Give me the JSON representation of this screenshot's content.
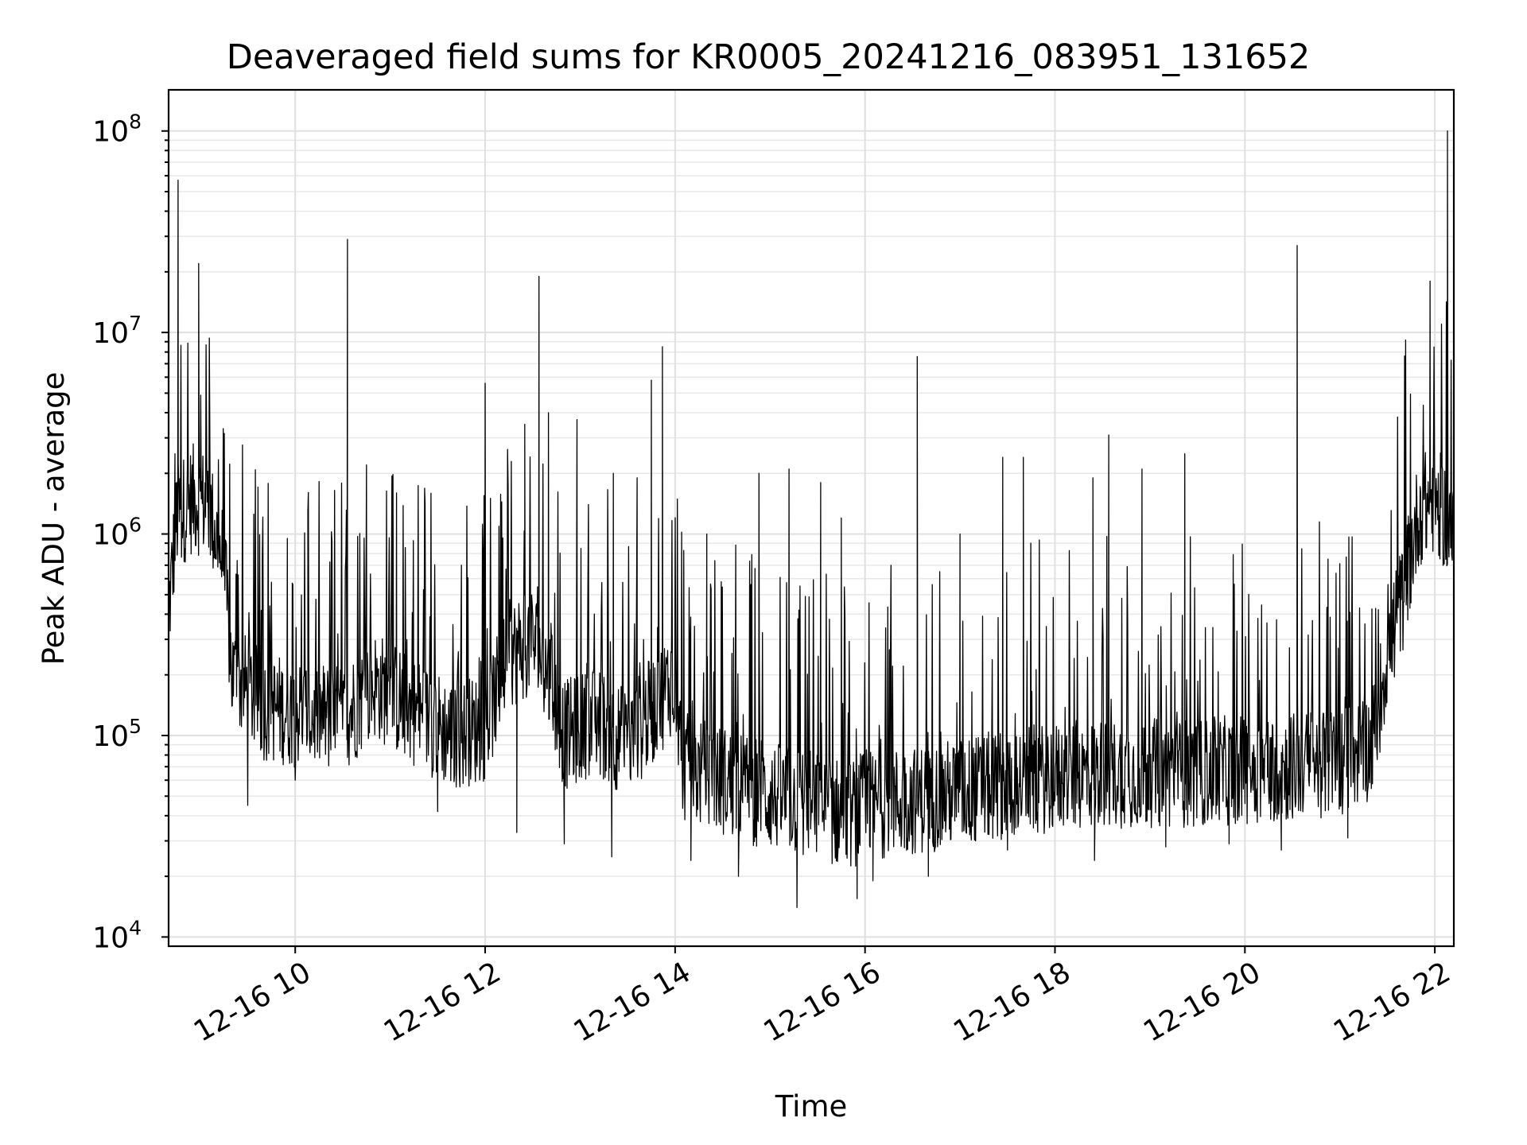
{
  "chart_data": {
    "type": "line",
    "title": "Deaveraged field sums for KR0005_20241216_083951_131652",
    "xlabel": "Time",
    "ylabel": "Peak ADU - average",
    "yscale": "log",
    "ylim": [
      9000,
      160000000
    ],
    "xlim": [
      "2024-12-16 08:40",
      "2024-12-16 22:12"
    ],
    "grid": true,
    "x_ticks": [
      {
        "time": "2024-12-16 10:00",
        "label": "12-16 10"
      },
      {
        "time": "2024-12-16 12:00",
        "label": "12-16 12"
      },
      {
        "time": "2024-12-16 14:00",
        "label": "12-16 14"
      },
      {
        "time": "2024-12-16 16:00",
        "label": "12-16 16"
      },
      {
        "time": "2024-12-16 18:00",
        "label": "12-16 18"
      },
      {
        "time": "2024-12-16 20:00",
        "label": "12-16 20"
      },
      {
        "time": "2024-12-16 22:00",
        "label": "12-16 22"
      }
    ],
    "y_ticks": [
      {
        "value": 10000,
        "base": "10",
        "exp": "4"
      },
      {
        "value": 100000,
        "base": "10",
        "exp": "5"
      },
      {
        "value": 1000000,
        "base": "10",
        "exp": "6"
      },
      {
        "value": 10000000,
        "base": "10",
        "exp": "7"
      },
      {
        "value": 100000000,
        "base": "10",
        "exp": "8"
      }
    ],
    "series": [
      {
        "color": "#000000",
        "baseline": [
          [
            "2024-12-16 08:40",
            400000
          ],
          [
            "2024-12-16 08:45",
            1200000
          ],
          [
            "2024-12-16 08:55",
            1500000
          ],
          [
            "2024-12-16 09:05",
            1400000
          ],
          [
            "2024-12-16 09:15",
            700000
          ],
          [
            "2024-12-16 09:20",
            200000
          ],
          [
            "2024-12-16 09:40",
            140000
          ],
          [
            "2024-12-16 10:00",
            130000
          ],
          [
            "2024-12-16 10:30",
            120000
          ],
          [
            "2024-12-16 10:50",
            180000
          ],
          [
            "2024-12-16 11:10",
            140000
          ],
          [
            "2024-12-16 11:40",
            100000
          ],
          [
            "2024-12-16 12:00",
            110000
          ],
          [
            "2024-12-16 12:15",
            250000
          ],
          [
            "2024-12-16 12:30",
            300000
          ],
          [
            "2024-12-16 12:40",
            200000
          ],
          [
            "2024-12-16 12:50",
            100000
          ],
          [
            "2024-12-16 13:10",
            120000
          ],
          [
            "2024-12-16 13:30",
            90000
          ],
          [
            "2024-12-16 13:50",
            150000
          ],
          [
            "2024-12-16 14:00",
            200000
          ],
          [
            "2024-12-16 14:05",
            70000
          ],
          [
            "2024-12-16 14:30",
            60000
          ],
          [
            "2024-12-16 15:00",
            50000
          ],
          [
            "2024-12-16 15:30",
            45000
          ],
          [
            "2024-12-16 15:50",
            40000
          ],
          [
            "2024-12-16 16:00",
            45000
          ],
          [
            "2024-12-16 16:30",
            48000
          ],
          [
            "2024-12-16 17:00",
            52000
          ],
          [
            "2024-12-16 17:30",
            58000
          ],
          [
            "2024-12-16 18:00",
            62000
          ],
          [
            "2024-12-16 18:30",
            65000
          ],
          [
            "2024-12-16 19:00",
            65000
          ],
          [
            "2024-12-16 19:30",
            65000
          ],
          [
            "2024-12-16 20:00",
            68000
          ],
          [
            "2024-12-16 20:30",
            70000
          ],
          [
            "2024-12-16 21:00",
            75000
          ],
          [
            "2024-12-16 21:20",
            90000
          ],
          [
            "2024-12-16 21:30",
            250000
          ],
          [
            "2024-12-16 21:40",
            500000
          ],
          [
            "2024-12-16 21:50",
            1300000
          ],
          [
            "2024-12-16 22:00",
            1500000
          ],
          [
            "2024-12-16 22:10",
            1100000
          ],
          [
            "2024-12-16 22:12",
            900000
          ]
        ],
        "spikes": [
          [
            "2024-12-16 08:44",
            2500000
          ],
          [
            "2024-12-16 08:46",
            57000000
          ],
          [
            "2024-12-16 08:59",
            22000000
          ],
          [
            "2024-12-16 09:04",
            3000000
          ],
          [
            "2024-12-16 09:55",
            950000
          ],
          [
            "2024-12-16 10:08",
            1300000
          ],
          [
            "2024-12-16 10:33",
            29000000
          ],
          [
            "2024-12-16 10:45",
            2200000
          ],
          [
            "2024-12-16 11:04",
            1600000
          ],
          [
            "2024-12-16 11:45",
            700000
          ],
          [
            "2024-12-16 12:00",
            5600000
          ],
          [
            "2024-12-16 12:25",
            3500000
          ],
          [
            "2024-12-16 12:34",
            19000000
          ],
          [
            "2024-12-16 12:40",
            4000000
          ],
          [
            "2024-12-16 12:58",
            3700000
          ],
          [
            "2024-12-16 13:21",
            2000000
          ],
          [
            "2024-12-16 13:36",
            1900000
          ],
          [
            "2024-12-16 13:45",
            5800000
          ],
          [
            "2024-12-16 13:52",
            8500000
          ],
          [
            "2024-12-16 14:20",
            1000000
          ],
          [
            "2024-12-16 14:53",
            2000000
          ],
          [
            "2024-12-16 15:12",
            2100000
          ],
          [
            "2024-12-16 15:32",
            1800000
          ],
          [
            "2024-12-16 15:45",
            1200000
          ],
          [
            "2024-12-16 16:33",
            7600000
          ],
          [
            "2024-12-16 17:00",
            1000000
          ],
          [
            "2024-12-16 17:27",
            2400000
          ],
          [
            "2024-12-16 17:40",
            2400000
          ],
          [
            "2024-12-16 18:24",
            1900000
          ],
          [
            "2024-12-16 18:34",
            3100000
          ],
          [
            "2024-12-16 18:55",
            2100000
          ],
          [
            "2024-12-16 19:22",
            2500000
          ],
          [
            "2024-12-16 20:33",
            27000000
          ],
          [
            "2024-12-16 21:57",
            18000000
          ],
          [
            "2024-12-16 22:08",
            100000000
          ]
        ],
        "dips": [
          [
            "2024-12-16 09:30",
            45000
          ],
          [
            "2024-12-16 10:00",
            60000
          ],
          [
            "2024-12-16 11:30",
            42000
          ],
          [
            "2024-12-16 12:20",
            33000
          ],
          [
            "2024-12-16 12:50",
            29000
          ],
          [
            "2024-12-16 13:20",
            25000
          ],
          [
            "2024-12-16 14:10",
            24000
          ],
          [
            "2024-12-16 14:40",
            20000
          ],
          [
            "2024-12-16 15:17",
            14000
          ],
          [
            "2024-12-16 15:55",
            15500
          ],
          [
            "2024-12-16 16:05",
            19000
          ],
          [
            "2024-12-16 16:40",
            20000
          ],
          [
            "2024-12-16 17:30",
            27000
          ],
          [
            "2024-12-16 18:25",
            24000
          ],
          [
            "2024-12-16 19:10",
            28000
          ],
          [
            "2024-12-16 19:50",
            29000
          ],
          [
            "2024-12-16 20:23",
            27000
          ],
          [
            "2024-12-16 21:05",
            31000
          ]
        ]
      }
    ]
  }
}
